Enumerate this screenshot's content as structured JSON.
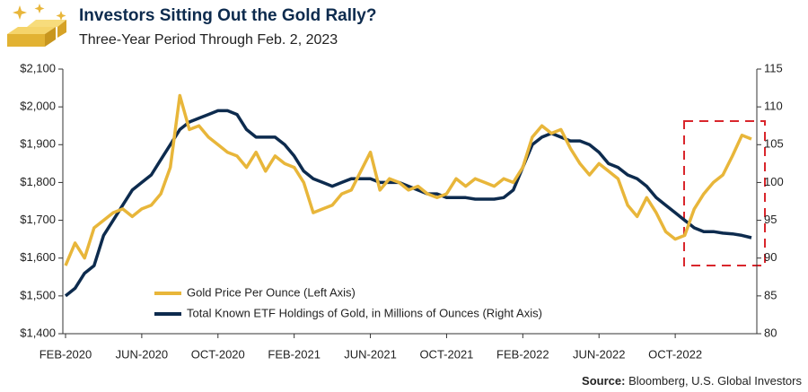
{
  "chart_data": {
    "type": "line",
    "title": "Investors Sitting Out the Gold Rally?",
    "subtitle": "Three-Year Period Through Feb. 2, 2023",
    "source_label": "Source:",
    "source": "Bloomberg, U.S. Global Investors",
    "categories": [
      "FEB-2020",
      null,
      null,
      null,
      null,
      null,
      null,
      null,
      "JUN-2020",
      null,
      null,
      null,
      null,
      null,
      null,
      null,
      "OCT-2020",
      null,
      null,
      null,
      null,
      null,
      null,
      null,
      "FEB-2021",
      null,
      null,
      null,
      null,
      null,
      null,
      null,
      "JUN-2021",
      null,
      null,
      null,
      null,
      null,
      null,
      null,
      "OCT-2021",
      null,
      null,
      null,
      null,
      null,
      null,
      null,
      "FEB-2022",
      null,
      null,
      null,
      null,
      null,
      null,
      null,
      "JUN-2022",
      null,
      null,
      null,
      null,
      null,
      null,
      null,
      "OCT-2022",
      null,
      null,
      null,
      null,
      null,
      null,
      null,
      null
    ],
    "series": [
      {
        "name": "Gold Price Per Ounce (Left Axis)",
        "color": "#e8b63a",
        "values": [
          1580,
          1640,
          1600,
          1680,
          1700,
          1720,
          1730,
          1710,
          1730,
          1740,
          1770,
          1840,
          2030,
          1940,
          1950,
          1920,
          1900,
          1880,
          1870,
          1840,
          1880,
          1830,
          1870,
          1850,
          1840,
          1800,
          1720,
          1730,
          1740,
          1770,
          1780,
          1830,
          1880,
          1780,
          1810,
          1800,
          1780,
          1790,
          1770,
          1760,
          1770,
          1810,
          1790,
          1810,
          1800,
          1790,
          1810,
          1800,
          1840,
          1920,
          1950,
          1930,
          1940,
          1890,
          1850,
          1820,
          1850,
          1830,
          1810,
          1740,
          1710,
          1760,
          1720,
          1670,
          1650,
          1660,
          1730,
          1770,
          1800,
          1820,
          1870,
          1925,
          1915
        ]
      },
      {
        "name": "Total Known ETF Holdings of Gold, in Millions of Ounces (Right Axis)",
        "color": "#0d2b4e",
        "axis": "y2",
        "values": [
          85,
          86,
          88,
          89,
          93,
          95,
          97,
          99,
          100,
          101,
          103,
          105,
          107,
          108,
          108.5,
          109,
          109.5,
          109.5,
          109,
          107,
          106,
          106,
          106,
          105,
          103.5,
          101.5,
          100.5,
          100,
          99.5,
          100,
          100.5,
          100.5,
          100.5,
          100,
          100,
          100,
          99.5,
          99,
          98.5,
          98.5,
          98,
          98,
          98,
          97.8,
          97.8,
          97.8,
          98,
          99,
          102,
          105,
          106,
          106.5,
          106,
          105.5,
          105.5,
          105,
          104,
          102.5,
          102,
          101,
          100.5,
          99.5,
          98,
          97,
          96,
          95,
          94,
          93.5,
          93.5,
          93.3,
          93.2,
          93,
          92.7
        ]
      }
    ],
    "ylim": [
      1400,
      2100
    ],
    "yticks": [
      {
        "value": 1400,
        "label": "$1,400"
      },
      {
        "value": 1500,
        "label": "$1,500"
      },
      {
        "value": 1600,
        "label": "$1,600"
      },
      {
        "value": 1700,
        "label": "$1,700"
      },
      {
        "value": 1800,
        "label": "$1,800"
      },
      {
        "value": 1900,
        "label": "$1,900"
      },
      {
        "value": 2000,
        "label": "$2,000"
      },
      {
        "value": 2100,
        "label": "$2,100"
      }
    ],
    "y2lim": [
      80,
      115
    ],
    "y2ticks": [
      80,
      85,
      90,
      95,
      100,
      105,
      110,
      115
    ],
    "legend": "lower left",
    "grid": false
  }
}
